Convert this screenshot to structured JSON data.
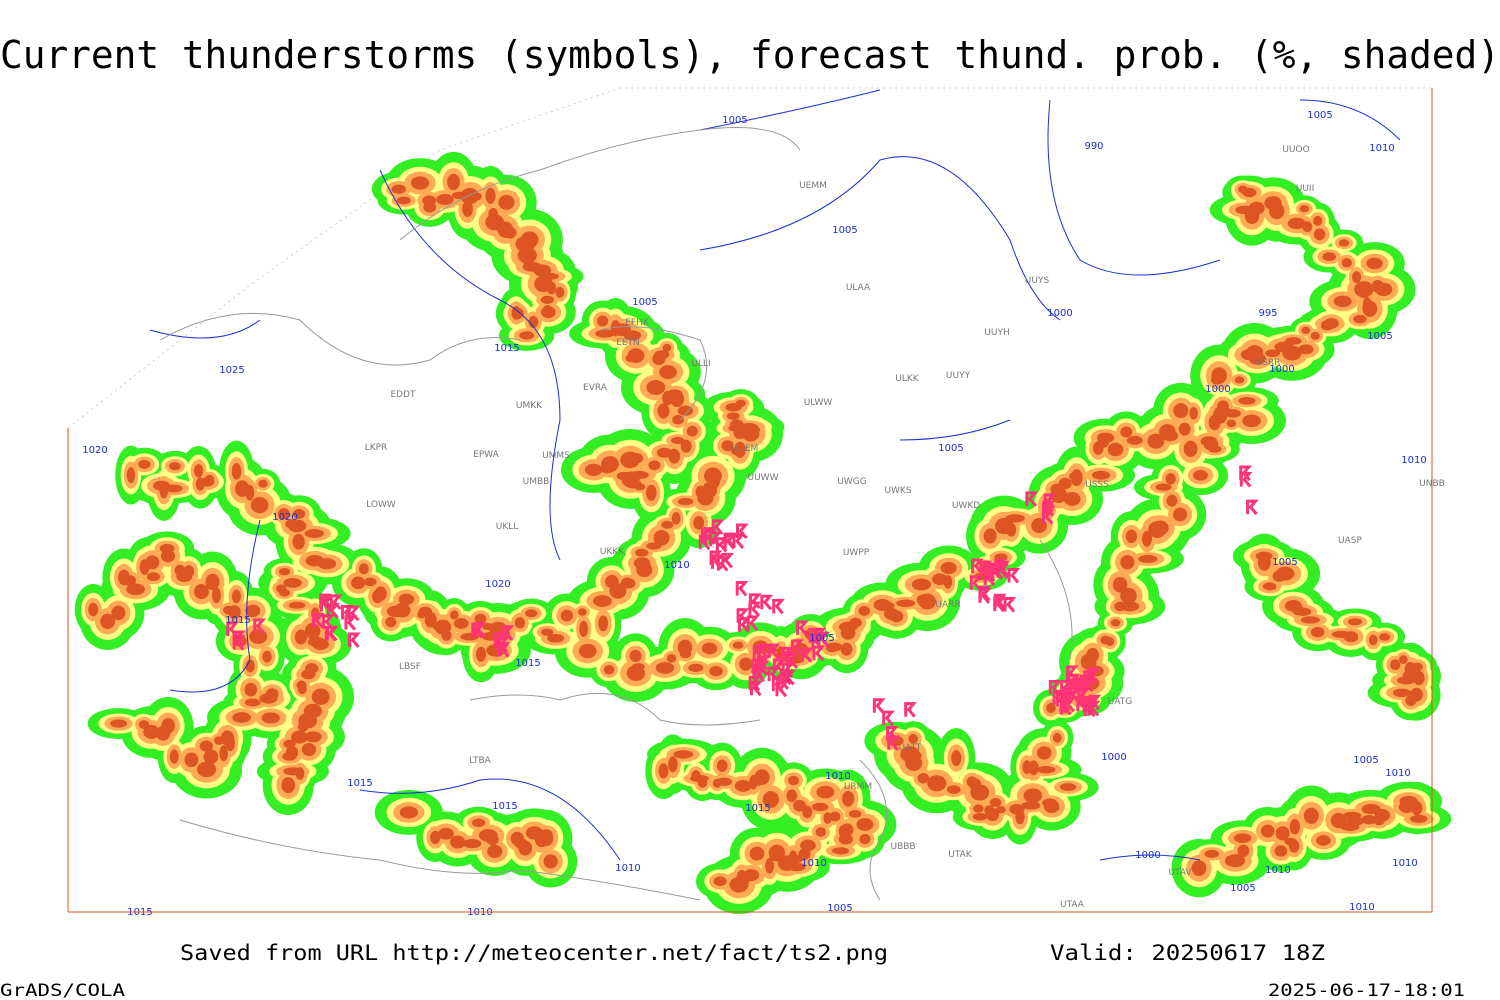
{
  "title": "Current thunderstorms (symbols), forecast thund. prob. (%, shaded)",
  "footer": {
    "source": "Saved from URL http://meteocenter.net/fact/ts2.png",
    "valid": "Valid: 20250617 18Z",
    "software": "GrADS/COLA",
    "timestamp": "2025-06-17-18:01"
  },
  "stations": [
    "ULAA",
    "UUYS",
    "UUYH",
    "ULKK",
    "UUYY",
    "ULWW",
    "UWGG",
    "UWKS",
    "UWPP",
    "EDDT",
    "EPWA",
    "LKPR",
    "LOWW",
    "UMKK",
    "UMMS",
    "UMBB",
    "UKLL",
    "UKKK",
    "ULLI",
    "EFHK",
    "EETN",
    "EVRA",
    "UEMM",
    "UUOO",
    "UUII",
    "USSS",
    "UWKD",
    "UARR",
    "UATG",
    "UATT",
    "LTBA",
    "LBSF",
    "UTAA",
    "UTAV",
    "UNBB",
    "UASP",
    "USRR",
    "UUEM",
    "UUWW",
    "URMM",
    "UBBB",
    "UTAK"
  ],
  "isobars": [
    1005,
    1005,
    1005,
    1015,
    1025,
    1020,
    1020,
    1015,
    1010,
    1020,
    1015,
    1005,
    1000,
    995,
    1005,
    1000,
    1000,
    1005,
    990,
    1005,
    1010,
    1010,
    1005,
    1000,
    1005,
    1010,
    1010,
    1015,
    1015,
    1015,
    1010,
    1010,
    1000,
    1010,
    1010,
    1005,
    1005,
    1010,
    1010,
    1015
  ]
}
